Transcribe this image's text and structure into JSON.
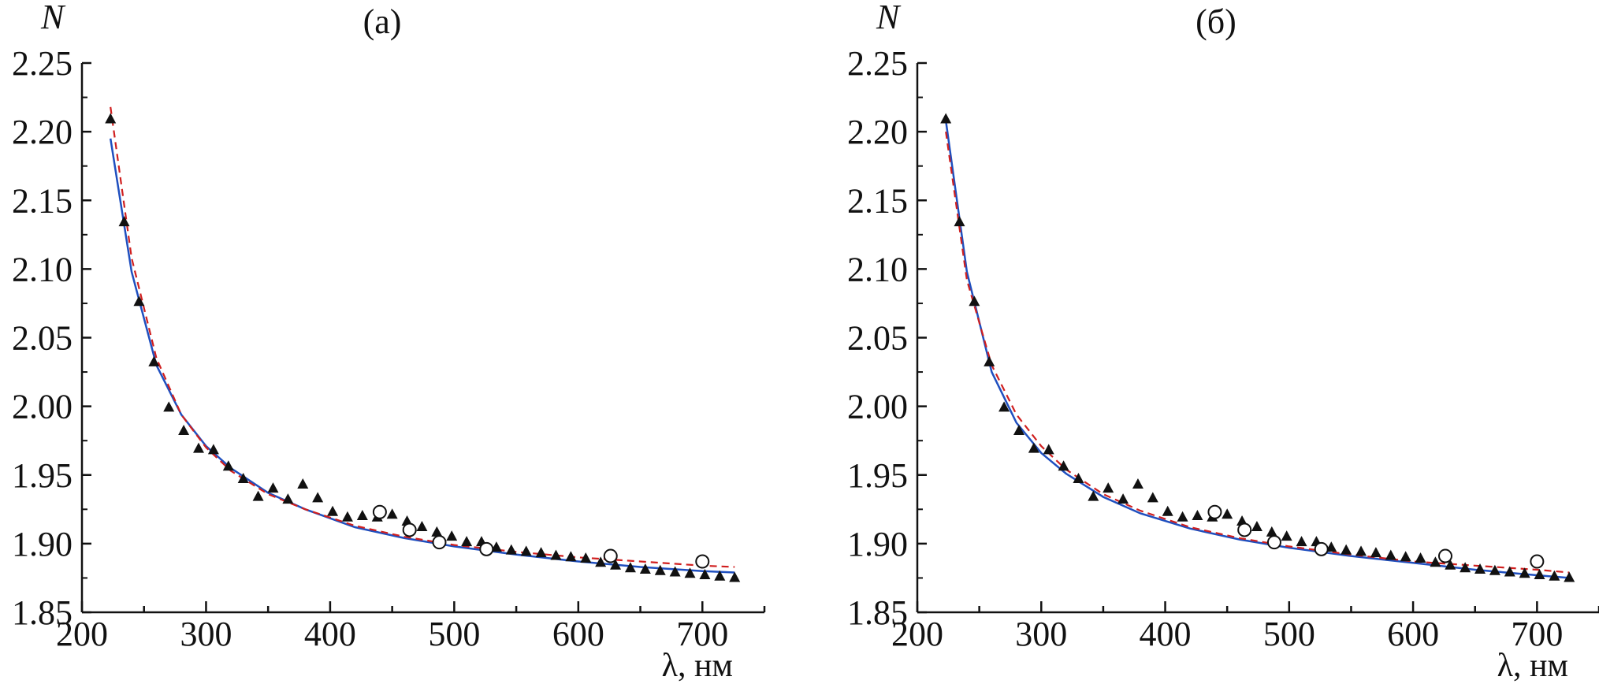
{
  "colors": {
    "axis": "#111111",
    "fit_solid": "#1f4fbf",
    "fit_dashed": "#d01f1f",
    "triangles": "#111111",
    "circles": "#111111"
  },
  "chart_data": [
    {
      "type": "scatter",
      "title": "(a)",
      "ylabel": "N",
      "xlabel": "λ, нм",
      "xlim": [
        200,
        750
      ],
      "ylim": [
        1.85,
        2.25
      ],
      "xticks": [
        "200",
        "300",
        "400",
        "500",
        "600",
        "700"
      ],
      "yticks": [
        "1.85",
        "1.90",
        "1.95",
        "2.00",
        "2.05",
        "2.10",
        "2.15",
        "2.20",
        "2.25"
      ],
      "grid": false,
      "series": [
        {
          "marker": "triangle-filled",
          "x": [
            223,
            234,
            246,
            258,
            270,
            282,
            294,
            306,
            318,
            330,
            342,
            354,
            366,
            378,
            390,
            402,
            414,
            426,
            438,
            450,
            462,
            474,
            486,
            498,
            510,
            522,
            534,
            546,
            558,
            570,
            582,
            594,
            606,
            618,
            630,
            642,
            654,
            666,
            678,
            690,
            702,
            714,
            726
          ],
          "y": [
            2.209,
            2.134,
            2.076,
            2.032,
            1.999,
            1.982,
            1.969,
            1.968,
            1.956,
            1.947,
            1.934,
            1.94,
            1.932,
            1.943,
            1.933,
            1.923,
            1.919,
            1.92,
            1.919,
            1.921,
            1.916,
            1.912,
            1.908,
            1.905,
            1.901,
            1.901,
            1.897,
            1.895,
            1.894,
            1.893,
            1.891,
            1.89,
            1.889,
            1.886,
            1.884,
            1.882,
            1.881,
            1.88,
            1.879,
            1.878,
            1.877,
            1.876,
            1.875
          ]
        },
        {
          "marker": "circle-open",
          "x": [
            440,
            464,
            488,
            526,
            626,
            700
          ],
          "y": [
            1.923,
            1.91,
            1.901,
            1.896,
            1.891,
            1.887
          ]
        },
        {
          "line": "solid",
          "x": [
            223,
            240,
            260,
            280,
            300,
            320,
            350,
            380,
            420,
            460,
            500,
            550,
            600,
            650,
            700,
            726
          ],
          "y": [
            2.195,
            2.098,
            2.03,
            1.994,
            1.971,
            1.955,
            1.937,
            1.925,
            1.912,
            1.904,
            1.898,
            1.892,
            1.887,
            1.883,
            1.88,
            1.879
          ]
        },
        {
          "line": "dashed",
          "x": [
            223,
            240,
            260,
            280,
            300,
            320,
            350,
            380,
            420,
            460,
            500,
            550,
            600,
            650,
            700,
            726
          ],
          "y": [
            2.218,
            2.108,
            2.035,
            1.994,
            1.97,
            1.953,
            1.936,
            1.925,
            1.913,
            1.905,
            1.899,
            1.894,
            1.89,
            1.887,
            1.884,
            1.883
          ]
        }
      ]
    },
    {
      "type": "scatter",
      "title": "(б)",
      "ylabel": "N",
      "xlabel": "λ, нм",
      "xlim": [
        200,
        750
      ],
      "ylim": [
        1.85,
        2.25
      ],
      "xticks": [
        "200",
        "300",
        "400",
        "500",
        "600",
        "700"
      ],
      "yticks": [
        "1.85",
        "1.90",
        "1.95",
        "2.00",
        "2.05",
        "2.10",
        "2.15",
        "2.20",
        "2.25"
      ],
      "grid": false,
      "series": [
        {
          "marker": "triangle-filled",
          "x": [
            223,
            234,
            246,
            258,
            270,
            282,
            294,
            306,
            318,
            330,
            342,
            354,
            366,
            378,
            390,
            402,
            414,
            426,
            438,
            450,
            462,
            474,
            486,
            498,
            510,
            522,
            534,
            546,
            558,
            570,
            582,
            594,
            606,
            618,
            630,
            642,
            654,
            666,
            678,
            690,
            702,
            714,
            726
          ],
          "y": [
            2.209,
            2.134,
            2.076,
            2.032,
            1.999,
            1.982,
            1.969,
            1.968,
            1.956,
            1.947,
            1.934,
            1.94,
            1.932,
            1.943,
            1.933,
            1.923,
            1.919,
            1.92,
            1.919,
            1.921,
            1.916,
            1.912,
            1.908,
            1.905,
            1.901,
            1.901,
            1.897,
            1.895,
            1.894,
            1.893,
            1.891,
            1.89,
            1.889,
            1.886,
            1.884,
            1.882,
            1.881,
            1.88,
            1.879,
            1.878,
            1.877,
            1.876,
            1.875
          ]
        },
        {
          "marker": "circle-open",
          "x": [
            440,
            464,
            488,
            526,
            626,
            700
          ],
          "y": [
            1.923,
            1.91,
            1.901,
            1.896,
            1.891,
            1.887
          ]
        },
        {
          "line": "solid",
          "x": [
            223,
            240,
            260,
            280,
            300,
            320,
            350,
            380,
            420,
            460,
            500,
            550,
            600,
            650,
            700,
            726
          ],
          "y": [
            2.208,
            2.098,
            2.025,
            1.988,
            1.966,
            1.951,
            1.934,
            1.922,
            1.911,
            1.903,
            1.897,
            1.891,
            1.886,
            1.881,
            1.877,
            1.875
          ]
        },
        {
          "line": "dashed",
          "x": [
            223,
            240,
            260,
            280,
            300,
            320,
            350,
            380,
            420,
            460,
            500,
            550,
            600,
            650,
            700,
            726
          ],
          "y": [
            2.2,
            2.092,
            2.03,
            1.994,
            1.971,
            1.954,
            1.936,
            1.924,
            1.912,
            1.904,
            1.898,
            1.892,
            1.887,
            1.884,
            1.881,
            1.879
          ]
        }
      ]
    }
  ]
}
